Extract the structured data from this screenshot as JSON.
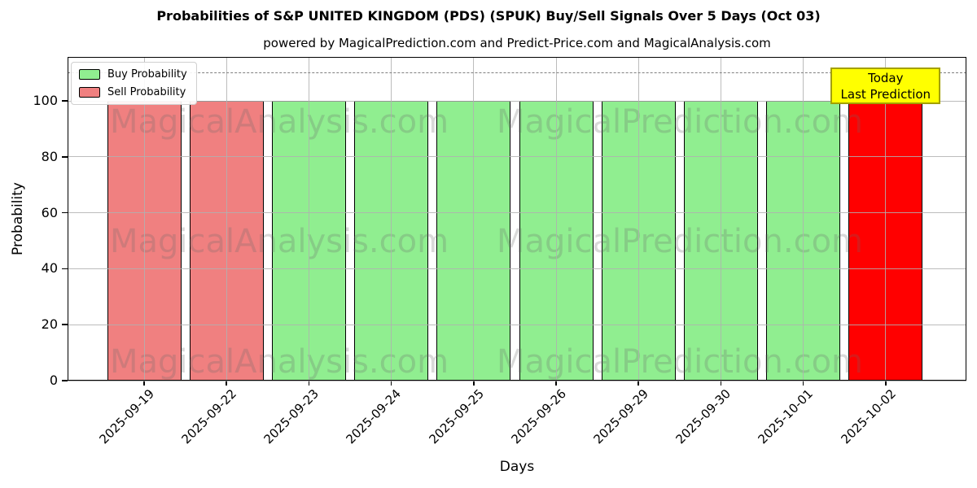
{
  "chart_data": {
    "type": "bar",
    "title": "Probabilities of S&P UNITED KINGDOM (PDS) (SPUK) Buy/Sell Signals Over 5 Days (Oct 03)",
    "subtitle": "powered by MagicalPrediction.com and Predict-Price.com and MagicalAnalysis.com",
    "xlabel": "Days",
    "ylabel": "Probability",
    "ylim": [
      0,
      115
    ],
    "yticks": [
      0,
      20,
      40,
      60,
      80,
      100
    ],
    "grid": true,
    "dashed_line_y": 110,
    "categories": [
      "2025-09-19",
      "2025-09-22",
      "2025-09-23",
      "2025-09-24",
      "2025-09-25",
      "2025-09-26",
      "2025-09-29",
      "2025-09-30",
      "2025-10-01",
      "2025-10-02"
    ],
    "series": [
      {
        "name": "Buy Probability",
        "color": "#90ee90",
        "values": [
          0,
          0,
          100,
          100,
          100,
          100,
          100,
          100,
          100,
          0
        ]
      },
      {
        "name": "Sell Probability",
        "color": "#f08080",
        "values": [
          100,
          100,
          0,
          0,
          0,
          0,
          0,
          0,
          0,
          100
        ]
      }
    ],
    "bars": [
      {
        "date": "2025-09-19",
        "value": 100,
        "signal": "sell",
        "color": "#f08080"
      },
      {
        "date": "2025-09-22",
        "value": 100,
        "signal": "sell",
        "color": "#f08080"
      },
      {
        "date": "2025-09-23",
        "value": 100,
        "signal": "buy",
        "color": "#90ee90"
      },
      {
        "date": "2025-09-24",
        "value": 100,
        "signal": "buy",
        "color": "#90ee90"
      },
      {
        "date": "2025-09-25",
        "value": 100,
        "signal": "buy",
        "color": "#90ee90"
      },
      {
        "date": "2025-09-26",
        "value": 100,
        "signal": "buy",
        "color": "#90ee90"
      },
      {
        "date": "2025-09-29",
        "value": 100,
        "signal": "buy",
        "color": "#90ee90"
      },
      {
        "date": "2025-09-30",
        "value": 100,
        "signal": "buy",
        "color": "#90ee90"
      },
      {
        "date": "2025-10-01",
        "value": 100,
        "signal": "buy",
        "color": "#90ee90"
      },
      {
        "date": "2025-10-02",
        "value": 100,
        "signal": "sell-today",
        "color": "#ff0000"
      }
    ],
    "legend": {
      "position": "upper-left",
      "entries": [
        {
          "label": "Buy Probability",
          "color": "#90ee90"
        },
        {
          "label": "Sell Probability",
          "color": "#f08080"
        }
      ]
    },
    "annotation": {
      "lines": [
        "Today",
        "Last Prediction"
      ],
      "bg": "#ffff00",
      "border": "#a3a000"
    },
    "watermarks": [
      "MagicalAnalysis.com",
      "MagicalPrediction.com"
    ],
    "colors": {
      "buy": "#90ee90",
      "sell": "#f08080",
      "today": "#ff0000",
      "bar_edge": "#000000",
      "grid": "#b0b0b0",
      "dashed_line": "#7f7f7f"
    }
  }
}
